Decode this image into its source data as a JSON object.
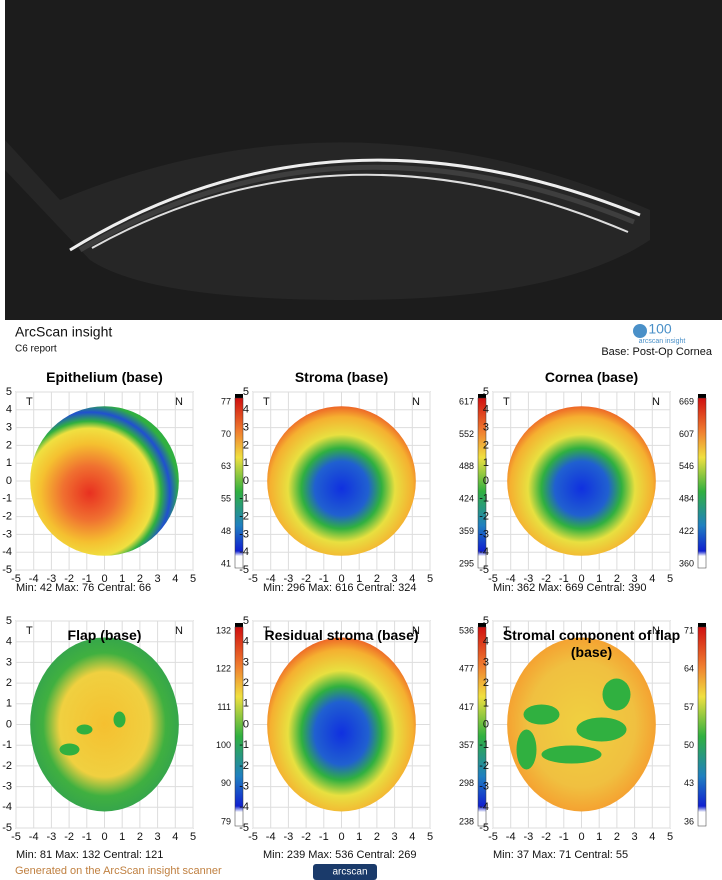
{
  "header": {
    "title": "ArcScan insight",
    "subtitle": "C6 report",
    "logo": "100",
    "logo_caption": "arcscan insight",
    "base": "Base: Post-Op Cornea"
  },
  "axis_ticks": [
    -5,
    -4,
    -3,
    -2,
    -1,
    0,
    1,
    2,
    3,
    4,
    5
  ],
  "side_labels": {
    "left": "T",
    "right": "N"
  },
  "maps": [
    {
      "title": "Epithelium (base)",
      "scale": [
        77,
        70,
        63,
        55,
        48,
        41
      ],
      "stats": "Min: 42 Max: 76 Central: 66"
    },
    {
      "title": "Stroma (base)",
      "scale": [
        617,
        552,
        488,
        424,
        359,
        295
      ],
      "stats": "Min: 296 Max: 616 Central: 324"
    },
    {
      "title": "Cornea (base)",
      "scale": [
        669,
        607,
        546,
        484,
        422,
        360
      ],
      "stats": "Min: 362 Max: 669 Central: 390"
    },
    {
      "title": "Flap (base)",
      "scale": [
        132,
        122,
        111,
        100,
        90,
        79
      ],
      "stats": "Min: 81 Max: 132 Central: 121"
    },
    {
      "title": "Residual stroma (base)",
      "scale": [
        536,
        477,
        417,
        357,
        298,
        238
      ],
      "stats": "Min: 239 Max: 536 Central: 269"
    },
    {
      "title": "Stromal component of flap (base)",
      "scale": [
        71,
        64,
        57,
        50,
        43,
        36
      ],
      "stats": "Min: 37 Max: 71 Central: 55"
    }
  ],
  "footer": {
    "note": "Generated on the ArcScan insight scanner",
    "logo": "arcscan"
  }
}
